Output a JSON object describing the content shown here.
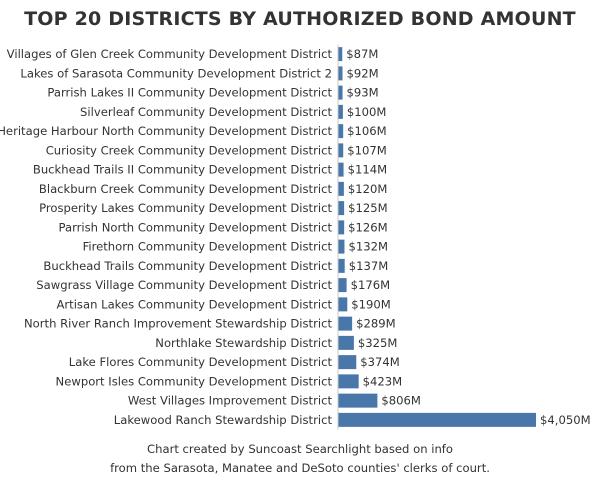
{
  "title": "TOP 20 DISTRICTS BY AUTHORIZED BOND AMOUNT",
  "colors": {
    "bar": "#4a77aa",
    "axis": "#c8c8c8",
    "text": "#333333"
  },
  "chart_data": {
    "type": "bar",
    "orientation": "horizontal",
    "title": "TOP 20 DISTRICTS BY AUTHORIZED BOND AMOUNT",
    "xlabel": "",
    "ylabel": "",
    "grid": false,
    "xlim": [
      0,
      4050
    ],
    "categories": [
      "Villages of Glen Creek Community Development District",
      "Lakes of Sarasota Community Development District 2",
      "Parrish Lakes II Community Development District",
      "Silverleaf Community Development District",
      "Heritage Harbour North Community Development District",
      "Curiosity Creek Community Development District",
      "Buckhead Trails II Community Development District",
      "Blackburn Creek Community Development District",
      "Prosperity Lakes Community Development District",
      "Parrish North Community Development District",
      "Firethorn Community Development District",
      "Buckhead Trails Community Development District",
      "Sawgrass Village Community Development District",
      "Artisan Lakes Community Development District",
      "North River Ranch Improvement Stewardship District",
      "Northlake Stewardship District",
      "Lake Flores Community Development District",
      "Newport Isles Community Development District",
      "West Villages Improvement District",
      "Lakewood Ranch Stewardship District"
    ],
    "values": [
      87,
      92,
      93,
      100,
      106,
      107,
      114,
      120,
      125,
      126,
      132,
      137,
      176,
      190,
      289,
      325,
      374,
      423,
      806,
      4050
    ],
    "value_labels": [
      "$87M",
      "$92M",
      "$93M",
      "$100M",
      "$106M",
      "$107M",
      "$114M",
      "$120M",
      "$125M",
      "$126M",
      "$132M",
      "$137M",
      "$176M",
      "$190M",
      "$289M",
      "$325M",
      "$374M",
      "$423M",
      "$806M",
      "$4,050M"
    ]
  },
  "footer": {
    "line1": "Chart created by Suncoast Searchlight based on info",
    "line2": "from the Sarasota, Manatee and DeSoto counties' clerks of court."
  }
}
